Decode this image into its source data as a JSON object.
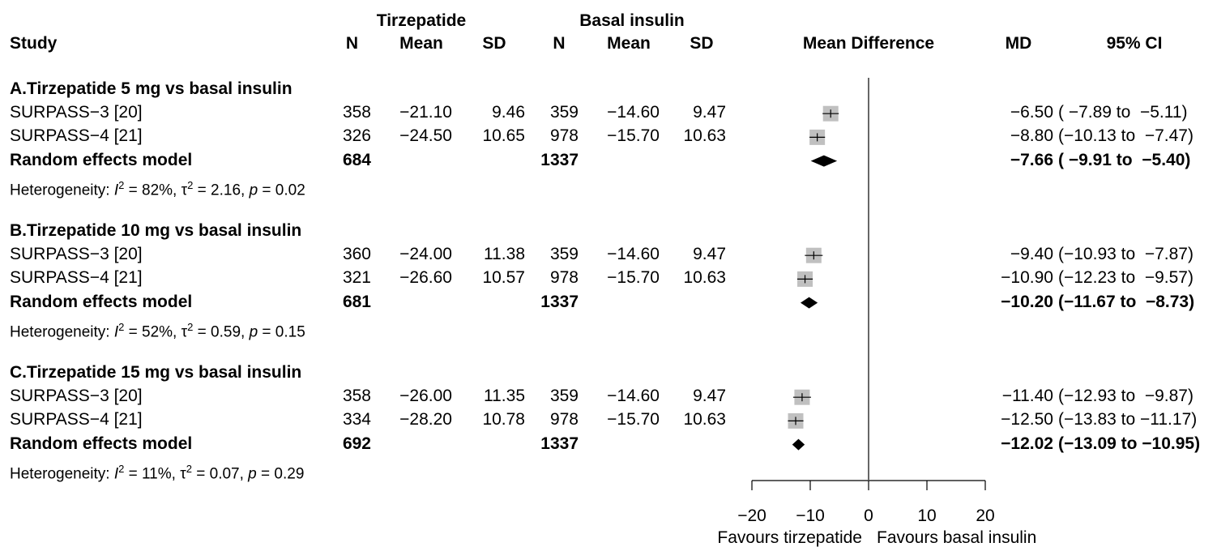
{
  "headers": {
    "group_tirzepatide": "Tirzepatide",
    "group_basal": "Basal insulin",
    "study": "Study",
    "n1": "N",
    "mean1": "Mean",
    "sd1": "SD",
    "n2": "N",
    "mean2": "Mean",
    "sd2": "SD",
    "mean_difference": "Mean Difference",
    "md": "MD",
    "ci": "95% CI"
  },
  "chart_data": {
    "type": "forest",
    "xlim": [
      -20,
      20
    ],
    "x_ticks": [
      "−20",
      "−10",
      "0",
      "10",
      "20"
    ],
    "x_tick_values": [
      -20,
      -10,
      0,
      10,
      20
    ],
    "xlabel_left": "Favours tirzepatide",
    "xlabel_right": "Favours basal insulin",
    "reference_line": 0,
    "subgroups": [
      {
        "title": "A.Tirzepatide 5 mg vs basal insulin",
        "studies": [
          {
            "name": "SURPASS−3 [20]",
            "n1": "358",
            "mean1": "−21.10",
            "sd1": "9.46",
            "n2": "359",
            "mean2": "−14.60",
            "sd2": "9.47",
            "md_text": "−6.50",
            "ci_text": "( −7.89 to  −5.11)",
            "md": -6.5,
            "lower": -7.89,
            "upper": -5.11
          },
          {
            "name": "SURPASS−4 [21]",
            "n1": "326",
            "mean1": "−24.50",
            "sd1": "10.65",
            "n2": "978",
            "mean2": "−15.70",
            "sd2": "10.63",
            "md_text": "−8.80",
            "ci_text": "(−10.13 to  −7.47)",
            "md": -8.8,
            "lower": -10.13,
            "upper": -7.47
          }
        ],
        "pooled": {
          "label": "Random effects model",
          "n1": "684",
          "n2": "1337",
          "md_text": "−7.66",
          "ci_text": "( −9.91 to  −5.40)",
          "md": -7.66,
          "lower": -9.91,
          "upper": -5.4
        },
        "heterogeneity": {
          "prefix": "Heterogeneity: ",
          "i2": "I",
          "i2_val": " = 82%, ",
          "tau": "τ",
          "tau_val": " = 2.16, ",
          "p": "p",
          "p_val": " = 0.02"
        }
      },
      {
        "title": "B.Tirzepatide 10 mg vs basal insulin",
        "studies": [
          {
            "name": "SURPASS−3 [20]",
            "n1": "360",
            "mean1": "−24.00",
            "sd1": "11.38",
            "n2": "359",
            "mean2": "−14.60",
            "sd2": "9.47",
            "md_text": "−9.40",
            "ci_text": "(−10.93 to  −7.87)",
            "md": -9.4,
            "lower": -10.93,
            "upper": -7.87
          },
          {
            "name": "SURPASS−4 [21]",
            "n1": "321",
            "mean1": "−26.60",
            "sd1": "10.57",
            "n2": "978",
            "mean2": "−15.70",
            "sd2": "10.63",
            "md_text": "−10.90",
            "ci_text": "(−12.23 to  −9.57)",
            "md": -10.9,
            "lower": -12.23,
            "upper": -9.57
          }
        ],
        "pooled": {
          "label": "Random effects model",
          "n1": "681",
          "n2": "1337",
          "md_text": "−10.20",
          "ci_text": "(−11.67 to  −8.73)",
          "md": -10.2,
          "lower": -11.67,
          "upper": -8.73
        },
        "heterogeneity": {
          "prefix": "Heterogeneity: ",
          "i2": "I",
          "i2_val": " = 52%, ",
          "tau": "τ",
          "tau_val": " = 0.59, ",
          "p": "p",
          "p_val": " = 0.15"
        }
      },
      {
        "title": "C.Tirzepatide 15 mg vs basal insulin",
        "studies": [
          {
            "name": "SURPASS−3 [20]",
            "n1": "358",
            "mean1": "−26.00",
            "sd1": "11.35",
            "n2": "359",
            "mean2": "−14.60",
            "sd2": "9.47",
            "md_text": "−11.40",
            "ci_text": "(−12.93 to  −9.87)",
            "md": -11.4,
            "lower": -12.93,
            "upper": -9.87
          },
          {
            "name": "SURPASS−4 [21]",
            "n1": "334",
            "mean1": "−28.20",
            "sd1": "10.78",
            "n2": "978",
            "mean2": "−15.70",
            "sd2": "10.63",
            "md_text": "−12.50",
            "ci_text": "(−13.83 to −11.17)",
            "md": -12.5,
            "lower": -13.83,
            "upper": -11.17
          }
        ],
        "pooled": {
          "label": "Random effects model",
          "n1": "692",
          "n2": "1337",
          "md_text": "−12.02",
          "ci_text": "(−13.09 to −10.95)",
          "md": -12.02,
          "lower": -13.09,
          "upper": -10.95
        },
        "heterogeneity": {
          "prefix": "Heterogeneity: ",
          "i2": "I",
          "i2_val": " = 11%, ",
          "tau": "τ",
          "tau_val": " = 0.07, ",
          "p": "p",
          "p_val": " = 0.29"
        }
      }
    ],
    "colors": {
      "square": "#c0c0c0",
      "diamond": "#000000",
      "line": "#000000"
    }
  }
}
